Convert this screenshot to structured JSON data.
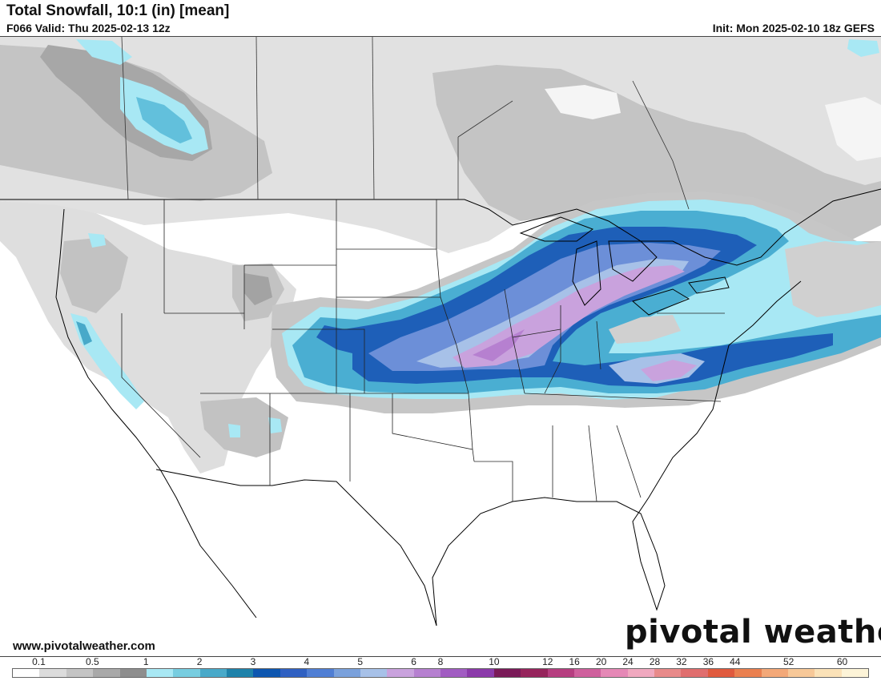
{
  "header": {
    "title": "Total Snowfall, 10:1 (in) [mean]",
    "valid": "F066 Valid: Thu 2025-02-13 12z",
    "init": "Init: Mon 2025-02-10 18z GEFS"
  },
  "footer": {
    "website": "www.pivotalweather.com",
    "brand": "pivotal weather"
  },
  "legend": {
    "labels": [
      "0.1",
      "0.5",
      "1",
      "2",
      "3",
      "4",
      "5",
      "6",
      "8",
      "10",
      "12",
      "16",
      "20",
      "24",
      "28",
      "32",
      "36",
      "44",
      "52",
      "60"
    ],
    "colors": [
      "#ffffff",
      "#dcdcdc",
      "#c4c4c4",
      "#a9a9a9",
      "#8e8e8e",
      "#a8e8f4",
      "#77cde0",
      "#48a9c9",
      "#1e82aa",
      "#0d56b0",
      "#2f60c2",
      "#4f7ed4",
      "#7aa1dc",
      "#a7c1e8",
      "#c9a2dd",
      "#b680d0",
      "#a15cc2",
      "#8b3aaa",
      "#7a1a58",
      "#96245c",
      "#b63e80",
      "#cf609d",
      "#e588b6",
      "#f0a8bf",
      "#e88a8a",
      "#e06e6e",
      "#e05a3e",
      "#ea8050",
      "#f3a878",
      "#f7c898",
      "#fbe2b8",
      "#fdf4d8"
    ]
  },
  "map": {
    "snow_colors": {
      "trace": "#dcdcdc",
      "light": "#c0c0c0",
      "moderate": "#a3a3a3",
      "heavy": "#8e8e8e",
      "cyan": "#a8e8f4",
      "teal": "#4aaed2",
      "blue": "#1e5fb8",
      "mid_blue": "#6c8fd8",
      "pale_blue": "#a7c1e8",
      "lavender": "#c9a2dd",
      "violet": "#b680d0"
    }
  }
}
